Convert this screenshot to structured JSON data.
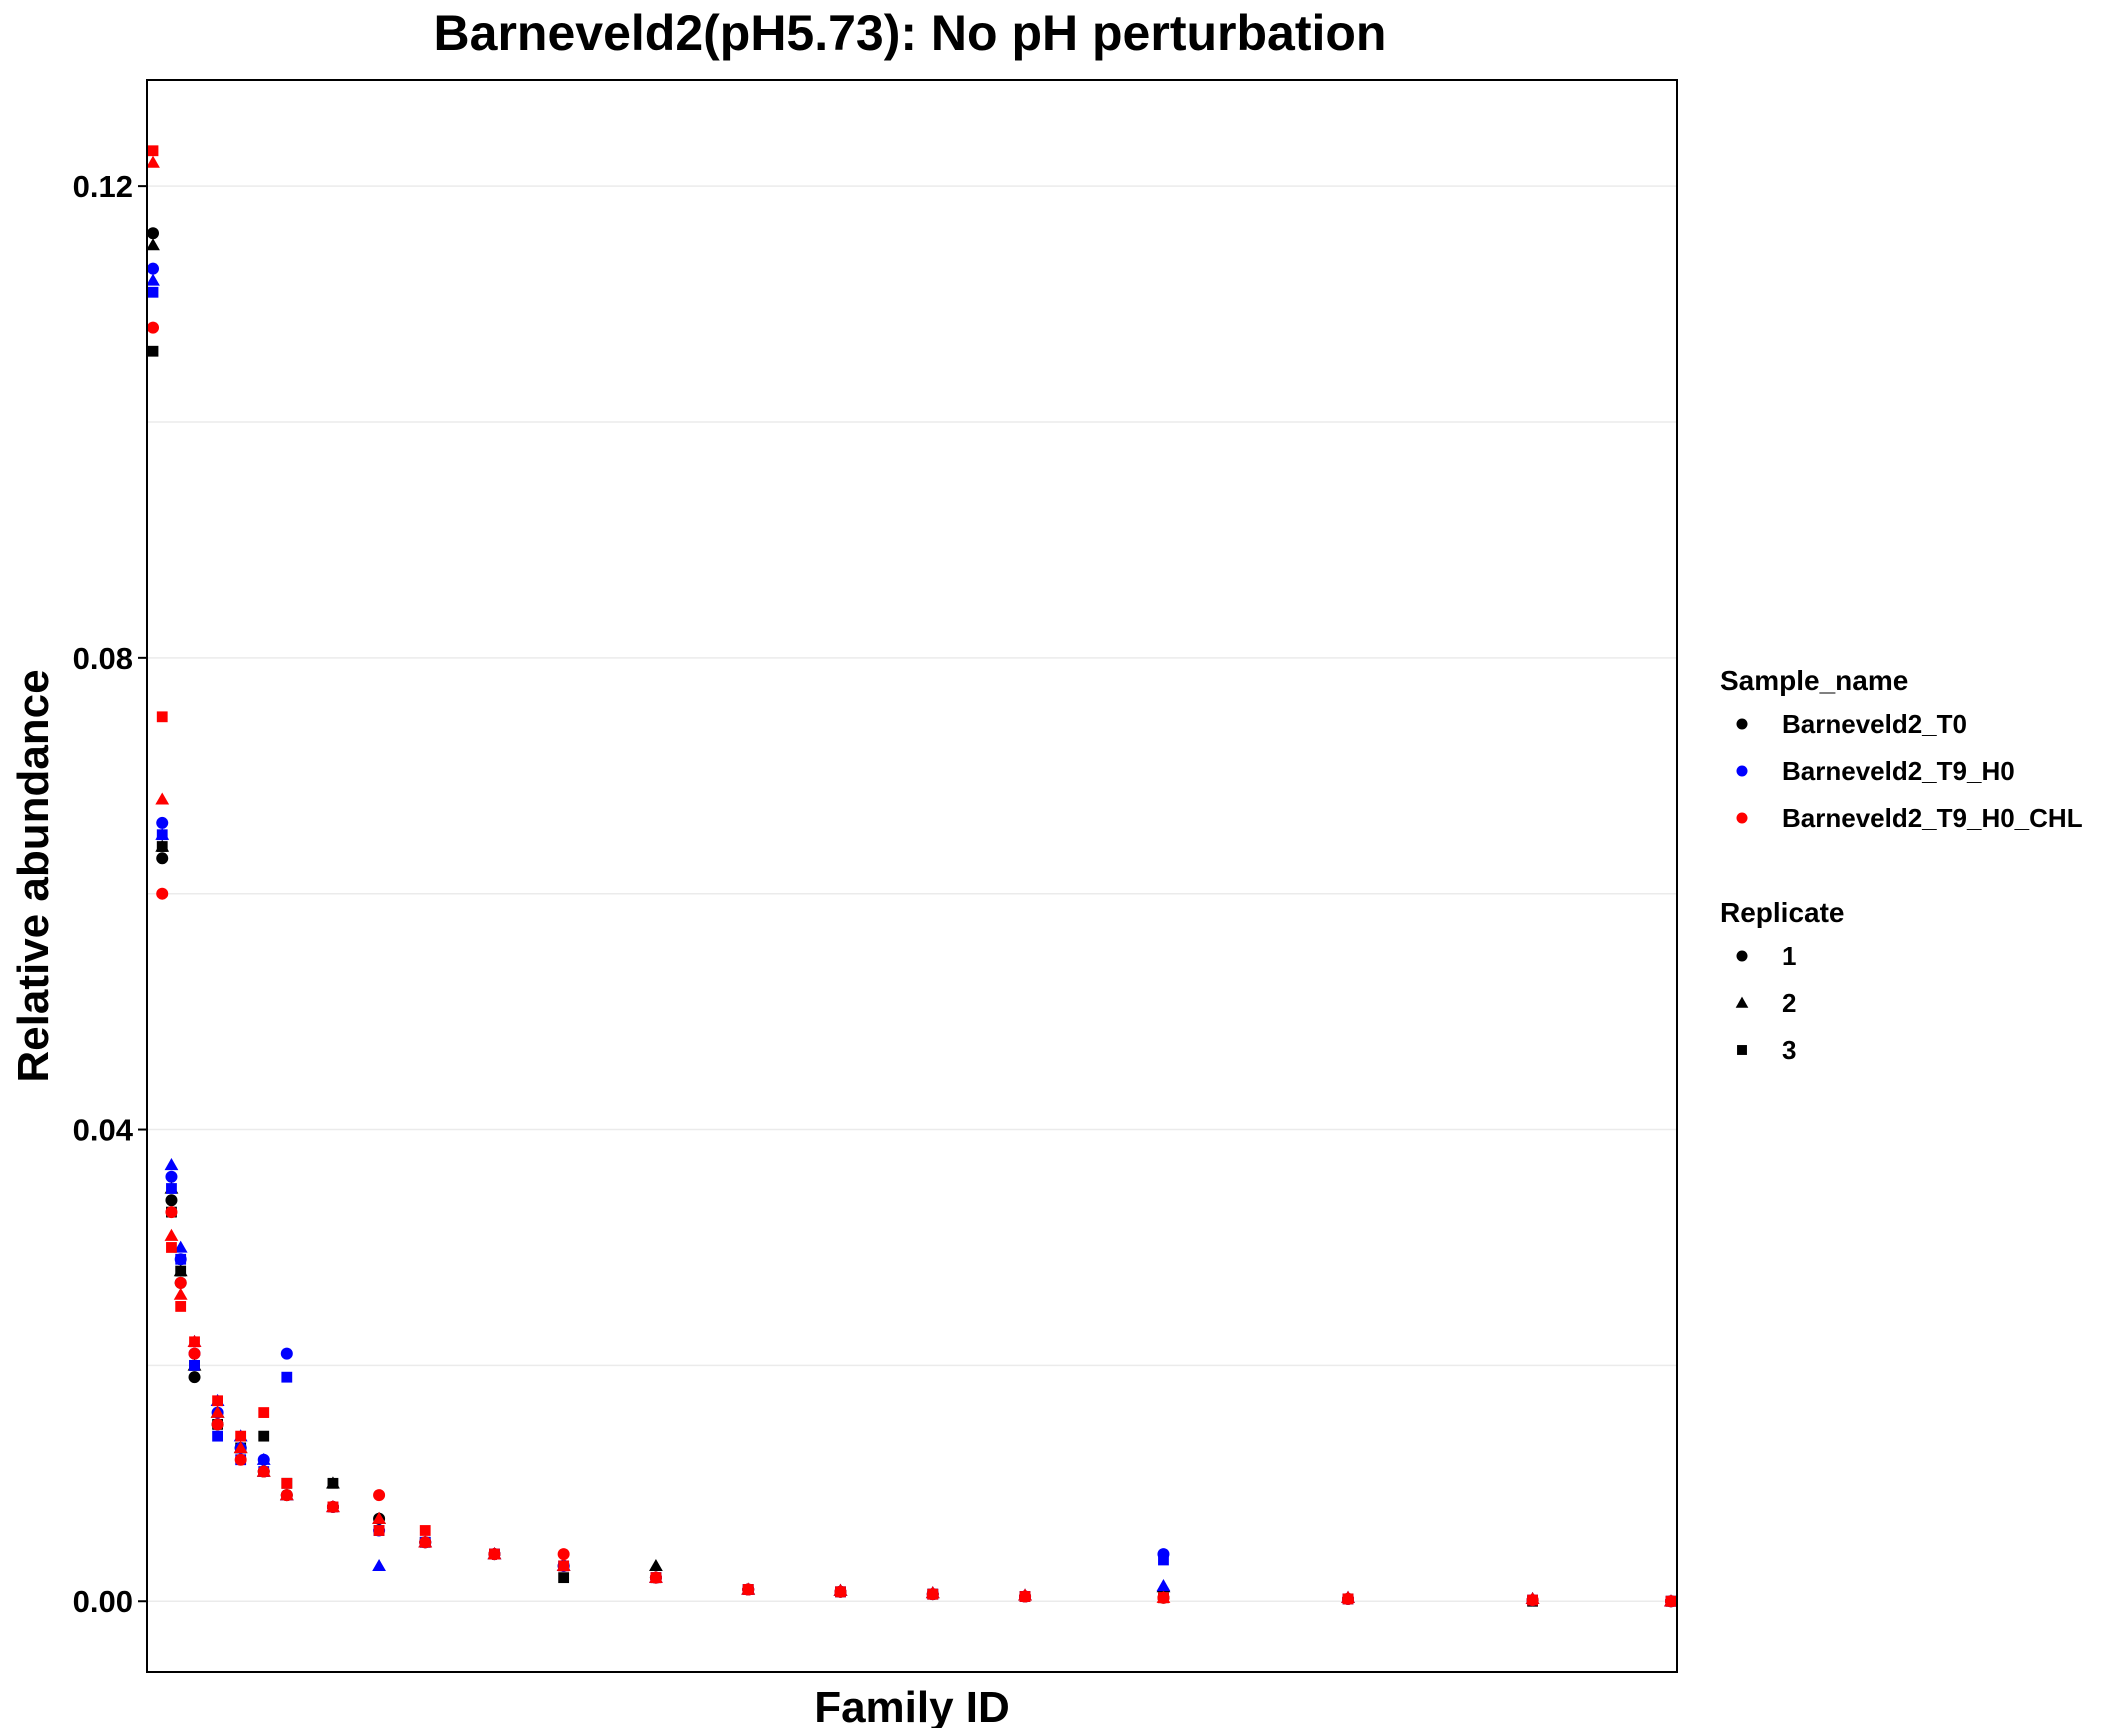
{
  "chart_data": {
    "type": "scatter",
    "title": "Barneveld2(pH5.73): No pH perturbation",
    "xlabel": "Family ID",
    "ylabel": "Relative abundance",
    "x_tick_labels": [],
    "xlim": [
      1,
      330
    ],
    "ylim": [
      -0.006,
      0.129
    ],
    "yticks": [
      0.0,
      0.04,
      0.08,
      0.12
    ],
    "ytick_labels": [
      "0.00",
      "0.04",
      "0.08",
      "0.12"
    ],
    "grid": "horizontal-only",
    "legend_position": "right",
    "legends": [
      {
        "title": "Sample_name",
        "entries": [
          {
            "label": "Barneveld2_T0",
            "color": "#000000"
          },
          {
            "label": "Barneveld2_T9_H0",
            "color": "#0000FF"
          },
          {
            "label": "Barneveld2_T9_H0_CHL",
            "color": "#FF0000"
          }
        ]
      },
      {
        "title": "Replicate",
        "entries": [
          {
            "label": "1",
            "shape": "circle"
          },
          {
            "label": "2",
            "shape": "triangle"
          },
          {
            "label": "3",
            "shape": "square"
          }
        ]
      }
    ],
    "series": [
      {
        "sample": "Barneveld2_T0",
        "replicate": "1",
        "color": "#000000",
        "shape": "circle",
        "x": [
          1,
          3,
          5,
          7,
          10,
          15,
          20,
          25,
          30,
          40,
          50,
          60,
          75,
          90,
          110,
          130,
          150,
          170,
          190,
          220,
          260,
          300,
          330
        ],
        "y": [
          0.116,
          0.063,
          0.034,
          0.027,
          0.019,
          0.015,
          0.013,
          0.011,
          0.009,
          0.008,
          0.007,
          0.005,
          0.004,
          0.003,
          0.002,
          0.001,
          0.0008,
          0.0006,
          0.0004,
          0.0003,
          0.0002,
          0.0001,
          0.0
        ]
      },
      {
        "sample": "Barneveld2_T0",
        "replicate": "2",
        "color": "#000000",
        "shape": "triangle",
        "x": [
          1,
          3,
          5,
          7,
          10,
          15,
          20,
          25,
          30,
          40,
          50,
          60,
          75,
          90,
          110,
          130,
          150,
          170,
          190,
          220,
          260,
          300,
          330
        ],
        "y": [
          0.115,
          0.064,
          0.035,
          0.028,
          0.02,
          0.016,
          0.013,
          0.011,
          0.009,
          0.01,
          0.007,
          0.005,
          0.004,
          0.003,
          0.003,
          0.001,
          0.0009,
          0.0007,
          0.0005,
          0.0012,
          0.0003,
          0.0002,
          0.0
        ]
      },
      {
        "sample": "Barneveld2_T0",
        "replicate": "3",
        "color": "#000000",
        "shape": "square",
        "x": [
          1,
          3,
          5,
          7,
          10,
          15,
          20,
          25,
          30,
          40,
          50,
          60,
          75,
          90,
          110,
          130,
          150,
          170,
          190,
          220,
          260,
          300,
          330
        ],
        "y": [
          0.106,
          0.064,
          0.033,
          0.028,
          0.02,
          0.015,
          0.013,
          0.014,
          0.01,
          0.01,
          0.006,
          0.005,
          0.004,
          0.002,
          0.002,
          0.001,
          0.0008,
          0.0006,
          0.0004,
          0.0003,
          0.0002,
          0.0,
          0.0
        ]
      },
      {
        "sample": "Barneveld2_T9_H0",
        "replicate": "1",
        "color": "#0000FF",
        "shape": "circle",
        "x": [
          1,
          3,
          5,
          7,
          10,
          15,
          20,
          25,
          30,
          40,
          50,
          60,
          75,
          90,
          110,
          130,
          150,
          170,
          190,
          220,
          260,
          300,
          330
        ],
        "y": [
          0.113,
          0.066,
          0.036,
          0.029,
          0.021,
          0.016,
          0.013,
          0.012,
          0.021,
          0.008,
          0.006,
          0.005,
          0.004,
          0.003,
          0.002,
          0.001,
          0.0008,
          0.0006,
          0.0004,
          0.004,
          0.0002,
          0.0001,
          0.0
        ]
      },
      {
        "sample": "Barneveld2_T9_H0",
        "replicate": "2",
        "color": "#0000FF",
        "shape": "triangle",
        "x": [
          1,
          3,
          5,
          7,
          10,
          15,
          20,
          25,
          30,
          40,
          50,
          60,
          75,
          90,
          110,
          130,
          150,
          170,
          190,
          220,
          260,
          300,
          330
        ],
        "y": [
          0.112,
          0.065,
          0.037,
          0.03,
          0.022,
          0.017,
          0.014,
          0.012,
          0.009,
          0.008,
          0.003,
          0.005,
          0.004,
          0.003,
          0.002,
          0.001,
          0.0009,
          0.0007,
          0.0005,
          0.0013,
          0.0003,
          0.0002,
          0.0
        ]
      },
      {
        "sample": "Barneveld2_T9_H0",
        "replicate": "3",
        "color": "#0000FF",
        "shape": "square",
        "x": [
          1,
          3,
          5,
          7,
          10,
          15,
          20,
          25,
          30,
          40,
          50,
          60,
          75,
          90,
          110,
          130,
          150,
          170,
          190,
          220,
          260,
          300,
          330
        ],
        "y": [
          0.111,
          0.065,
          0.035,
          0.029,
          0.02,
          0.014,
          0.012,
          0.011,
          0.019,
          0.008,
          0.006,
          0.005,
          0.004,
          0.003,
          0.002,
          0.001,
          0.0008,
          0.0006,
          0.0004,
          0.0035,
          0.0002,
          0.0001,
          0.0
        ]
      },
      {
        "sample": "Barneveld2_T9_H0_CHL",
        "replicate": "1",
        "color": "#FF0000",
        "shape": "circle",
        "x": [
          1,
          3,
          5,
          7,
          10,
          15,
          20,
          25,
          30,
          40,
          50,
          60,
          75,
          90,
          110,
          130,
          150,
          170,
          190,
          220,
          260,
          300,
          330
        ],
        "y": [
          0.108,
          0.06,
          0.033,
          0.027,
          0.021,
          0.015,
          0.012,
          0.011,
          0.009,
          0.008,
          0.009,
          0.005,
          0.004,
          0.004,
          0.002,
          0.001,
          0.0008,
          0.0006,
          0.0004,
          0.0003,
          0.0002,
          0.0001,
          0.0
        ]
      },
      {
        "sample": "Barneveld2_T9_H0_CHL",
        "replicate": "2",
        "color": "#FF0000",
        "shape": "triangle",
        "x": [
          1,
          3,
          5,
          7,
          10,
          15,
          20,
          25,
          30,
          40,
          50,
          60,
          75,
          90,
          110,
          130,
          150,
          170,
          190,
          220,
          260,
          300,
          330
        ],
        "y": [
          0.122,
          0.068,
          0.031,
          0.026,
          0.022,
          0.016,
          0.013,
          0.011,
          0.009,
          0.008,
          0.007,
          0.005,
          0.004,
          0.003,
          0.002,
          0.001,
          0.0009,
          0.0007,
          0.0005,
          0.0003,
          0.0003,
          0.0002,
          0.0
        ]
      },
      {
        "sample": "Barneveld2_T9_H0_CHL",
        "replicate": "3",
        "color": "#FF0000",
        "shape": "square",
        "x": [
          1,
          3,
          5,
          7,
          10,
          15,
          20,
          25,
          30,
          40,
          50,
          60,
          75,
          90,
          110,
          130,
          150,
          170,
          190,
          220,
          260,
          300,
          330
        ],
        "y": [
          0.123,
          0.075,
          0.03,
          0.025,
          0.022,
          0.017,
          0.014,
          0.016,
          0.01,
          0.008,
          0.006,
          0.006,
          0.004,
          0.003,
          0.002,
          0.001,
          0.0008,
          0.0006,
          0.0004,
          0.0003,
          0.0002,
          0.0001,
          0.0
        ]
      }
    ]
  }
}
